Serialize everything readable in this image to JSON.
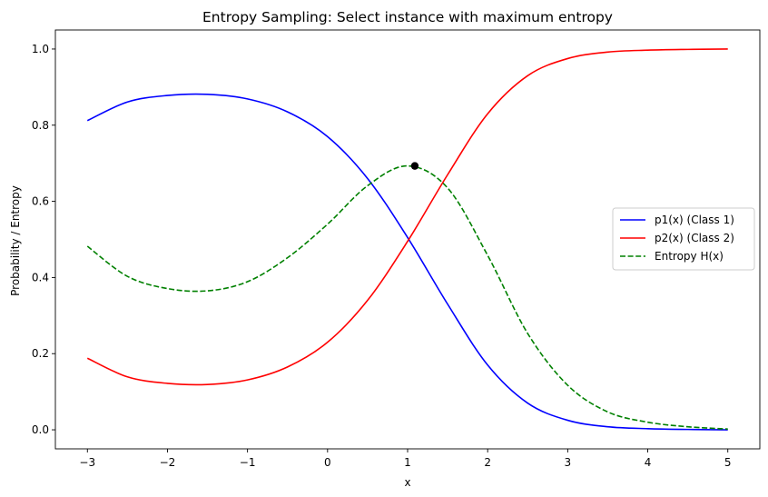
{
  "chart_data": {
    "type": "line",
    "title": "Entropy Sampling: Select instance with maximum entropy",
    "xlabel": "x",
    "ylabel": "Probability / Entropy",
    "xlim": [
      -3.4,
      5.4
    ],
    "ylim": [
      -0.05,
      1.05
    ],
    "x_ticks": [
      -3,
      -2,
      -1,
      0,
      1,
      2,
      3,
      4,
      5
    ],
    "x_tick_labels": [
      "−3",
      "−2",
      "−1",
      "0",
      "1",
      "2",
      "3",
      "4",
      "5"
    ],
    "y_ticks": [
      0.0,
      0.2,
      0.4,
      0.6,
      0.8,
      1.0
    ],
    "y_tick_labels": [
      "0.0",
      "0.2",
      "0.4",
      "0.6",
      "0.8",
      "1.0"
    ],
    "grid": false,
    "legend_position": "center-right",
    "series": [
      {
        "name": "p1(x) (Class 1)",
        "color": "#0000ff",
        "style": "solid",
        "x": [
          -3,
          -2.5,
          -2,
          -1.5,
          -1,
          -0.5,
          0,
          0.5,
          1,
          1.5,
          2,
          2.5,
          3,
          3.5,
          4,
          4.5,
          5
        ],
        "y": [
          0.812,
          0.861,
          0.878,
          0.881,
          0.869,
          0.835,
          0.77,
          0.66,
          0.505,
          0.33,
          0.17,
          0.07,
          0.025,
          0.008,
          0.003,
          0.001,
          0.0
        ]
      },
      {
        "name": "p2(x) (Class 2)",
        "color": "#ff0000",
        "style": "solid",
        "x": [
          -3,
          -2.5,
          -2,
          -1.5,
          -1,
          -0.5,
          0,
          0.5,
          1,
          1.5,
          2,
          2.5,
          3,
          3.5,
          4,
          4.5,
          5
        ],
        "y": [
          0.188,
          0.139,
          0.122,
          0.119,
          0.131,
          0.165,
          0.23,
          0.34,
          0.495,
          0.67,
          0.83,
          0.93,
          0.975,
          0.992,
          0.997,
          0.999,
          1.0
        ]
      },
      {
        "name": "Entropy H(x)",
        "color": "#008000",
        "style": "dashed",
        "x": [
          -3,
          -2.5,
          -2,
          -1.5,
          -1,
          -0.5,
          0,
          0.5,
          1,
          1.5,
          2,
          2.5,
          3,
          3.5,
          4,
          4.5,
          5
        ],
        "y": [
          0.482,
          0.403,
          0.371,
          0.365,
          0.389,
          0.452,
          0.54,
          0.641,
          0.693,
          0.635,
          0.458,
          0.253,
          0.117,
          0.047,
          0.02,
          0.008,
          0.002
        ]
      }
    ],
    "highlight_point": {
      "x": 1.09,
      "y": 0.693,
      "color": "#000000"
    }
  }
}
